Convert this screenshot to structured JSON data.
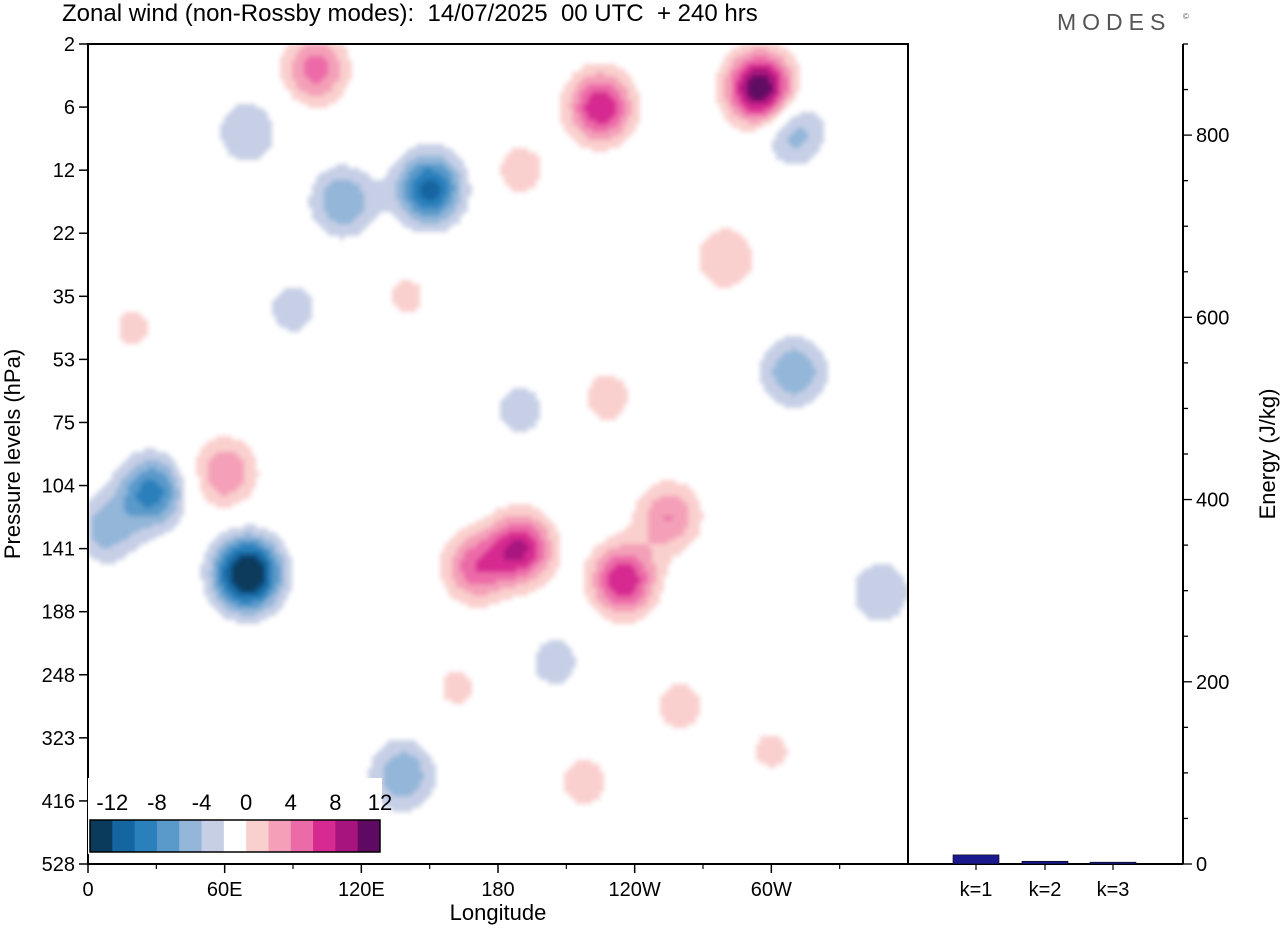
{
  "title": "Zonal wind (non-Rossby modes):  14/07/2025  00 UTC  + 240 hrs",
  "brand": "MODES",
  "brand_mark": "©",
  "chart_data": [
    {
      "type": "heatmap",
      "title": "Zonal wind (non-Rossby modes):  14/07/2025  00 UTC  + 240 hrs",
      "xlabel": "Longitude",
      "ylabel": "Pressure levels (hPa)",
      "x_ticks": [
        "0",
        "60E",
        "120E",
        "180",
        "120W",
        "60W"
      ],
      "x_tick_values": [
        0,
        60,
        120,
        180,
        240,
        300
      ],
      "xlim": [
        0,
        360
      ],
      "y_ticks": [
        "2",
        "6",
        "12",
        "22",
        "35",
        "53",
        "75",
        "104",
        "141",
        "188",
        "248",
        "323",
        "416",
        "528"
      ],
      "colorbar": {
        "labels": [
          "-12",
          "-8",
          "-4",
          "0",
          "4",
          "8",
          "12"
        ],
        "levels": [
          -14,
          -12,
          -10,
          -8,
          -6,
          -4,
          -2,
          2,
          4,
          6,
          8,
          10,
          12,
          14
        ],
        "colors": [
          "#0a3a5c",
          "#1565a0",
          "#2a80bb",
          "#5a9acb",
          "#93b6d9",
          "#c6cfe6",
          "#ffffff",
          "#fad0ce",
          "#f4a0b8",
          "#ec6aa8",
          "#d72a90",
          "#a8147e",
          "#5e0a62"
        ]
      },
      "features": [
        {
          "lon": 70,
          "level": 8.4,
          "value": -16
        },
        {
          "lon": 150,
          "level": 2.3,
          "value": -11
        },
        {
          "lon": 28,
          "level": 7.1,
          "value": -9
        },
        {
          "lon": 8,
          "level": 7.7,
          "value": -5
        },
        {
          "lon": 112,
          "level": 2.5,
          "value": -6
        },
        {
          "lon": 70,
          "level": 1.4,
          "value": -4
        },
        {
          "lon": 138,
          "level": 11.6,
          "value": -6
        },
        {
          "lon": 310,
          "level": 5.2,
          "value": -6
        },
        {
          "lon": 310,
          "level": 1.4,
          "value": -5
        },
        {
          "lon": 90,
          "level": 4.2,
          "value": -3
        },
        {
          "lon": 190,
          "level": 5.8,
          "value": -3
        },
        {
          "lon": 205,
          "level": 9.8,
          "value": -3
        },
        {
          "lon": 348,
          "level": 8.7,
          "value": -4
        },
        {
          "lon": 295,
          "level": 0.7,
          "value": 14
        },
        {
          "lon": 225,
          "level": 1.0,
          "value": 10
        },
        {
          "lon": 100,
          "level": 0.4,
          "value": 7
        },
        {
          "lon": 190,
          "level": 8.0,
          "value": 10
        },
        {
          "lon": 235,
          "level": 8.5,
          "value": 10
        },
        {
          "lon": 255,
          "level": 7.5,
          "value": 6
        },
        {
          "lon": 170,
          "level": 8.3,
          "value": 7
        },
        {
          "lon": 60,
          "level": 6.8,
          "value": 6
        },
        {
          "lon": 280,
          "level": 3.4,
          "value": 4
        },
        {
          "lon": 140,
          "level": 4.0,
          "value": 2.5
        },
        {
          "lon": 228,
          "level": 5.6,
          "value": 3
        },
        {
          "lon": 260,
          "level": 10.5,
          "value": 3
        },
        {
          "lon": 218,
          "level": 11.7,
          "value": 3
        },
        {
          "lon": 190,
          "level": 2.0,
          "value": 3
        },
        {
          "lon": 300,
          "level": 11.2,
          "value": 2.5
        },
        {
          "lon": 20,
          "level": 4.5,
          "value": 2.5
        },
        {
          "lon": 162,
          "level": 10.2,
          "value": 2.5
        }
      ]
    },
    {
      "type": "bar",
      "ylabel": "Energy (J/kg)",
      "categories": [
        "k=1",
        "k=2",
        "k=3"
      ],
      "values": [
        10,
        3,
        2
      ],
      "ylim": [
        0,
        900
      ],
      "y_ticks": [
        0,
        200,
        400,
        600,
        800
      ],
      "bar_color": "#1a1a8c"
    }
  ]
}
